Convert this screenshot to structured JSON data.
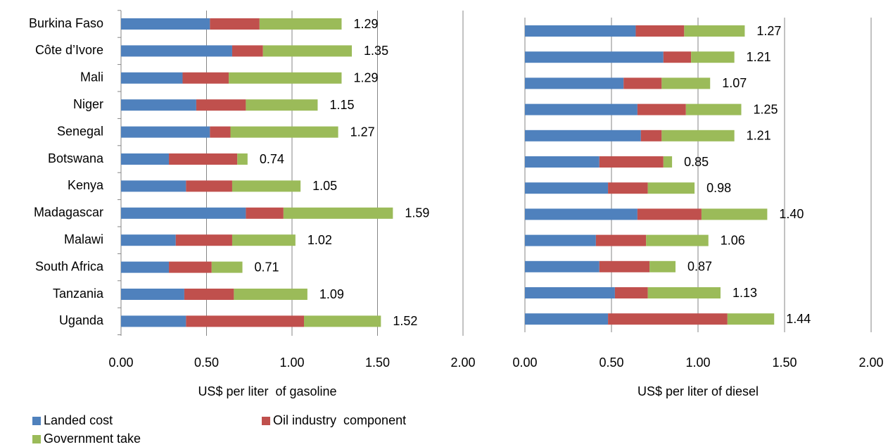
{
  "chart_data": [
    {
      "type": "stacked-barh",
      "xlabel": "US$ per liter  of gasoline",
      "categories": [
        "Burkina Faso",
        "Côte d’Ivore",
        "Mali",
        "Niger",
        "Senegal",
        "Botswana",
        "Kenya",
        "Madagascar",
        "Malawi",
        "South Africa",
        "Tanzania",
        "Uganda"
      ],
      "series": [
        {
          "name": "Landed cost",
          "color": "#4f81bd",
          "values": [
            0.52,
            0.65,
            0.36,
            0.44,
            0.52,
            0.28,
            0.38,
            0.73,
            0.32,
            0.28,
            0.37,
            0.38
          ]
        },
        {
          "name": "Oil industry  component",
          "color": "#c0504d",
          "values": [
            0.29,
            0.18,
            0.27,
            0.29,
            0.12,
            0.4,
            0.27,
            0.22,
            0.33,
            0.25,
            0.29,
            0.69
          ]
        },
        {
          "name": "Government take",
          "color": "#9bbb59",
          "values": [
            0.48,
            0.52,
            0.66,
            0.42,
            0.63,
            0.06,
            0.4,
            0.64,
            0.37,
            0.18,
            0.43,
            0.45
          ]
        }
      ],
      "totals": {
        "values": [
          1.29,
          1.35,
          1.29,
          1.15,
          1.27,
          0.74,
          1.05,
          1.59,
          1.02,
          0.71,
          1.09,
          1.52
        ],
        "value_labels": [
          "1.29",
          "1.35",
          "1.29",
          "1.15",
          "1.27",
          "0.74",
          "1.05",
          "1.59",
          "1.02",
          "0.71",
          "1.09",
          "1.52"
        ]
      },
      "xlim": [
        0,
        2
      ],
      "xticks": [
        {
          "value": 0,
          "label": "0.00"
        },
        {
          "value": 0.5,
          "label": "0.50"
        },
        {
          "value": 1,
          "label": "1.00"
        },
        {
          "value": 1.5,
          "label": "1.50"
        },
        {
          "value": 2,
          "label": "2.00"
        }
      ],
      "grid": true
    },
    {
      "type": "stacked-barh",
      "xlabel": "US$ per liter of diesel",
      "series": [
        {
          "name": "Landed cost",
          "color": "#4f81bd",
          "values": [
            0.64,
            0.8,
            0.57,
            0.65,
            0.67,
            0.43,
            0.48,
            0.65,
            0.41,
            0.43,
            0.52,
            0.48
          ]
        },
        {
          "name": "Oil industry  component",
          "color": "#c0504d",
          "values": [
            0.28,
            0.16,
            0.22,
            0.28,
            0.12,
            0.37,
            0.23,
            0.37,
            0.29,
            0.29,
            0.19,
            0.69
          ]
        },
        {
          "name": "Government take",
          "color": "#9bbb59",
          "values": [
            0.35,
            0.25,
            0.28,
            0.32,
            0.42,
            0.05,
            0.27,
            0.38,
            0.36,
            0.15,
            0.42,
            0.27
          ]
        }
      ],
      "totals": {
        "values": [
          1.27,
          1.21,
          1.07,
          1.25,
          1.21,
          0.85,
          0.98,
          1.4,
          1.06,
          0.87,
          1.13,
          1.44
        ],
        "value_labels": [
          "1.27",
          "1.21",
          "1.07",
          "1.25",
          "1.21",
          "0.85",
          "0.98",
          "1.40",
          "1.06",
          "0.87",
          "1.13",
          "1.44"
        ]
      },
      "xlim": [
        0,
        2
      ],
      "xticks": [
        {
          "value": 0,
          "label": "0.00"
        },
        {
          "value": 0.5,
          "label": "0.50"
        },
        {
          "value": 1,
          "label": "1.00"
        },
        {
          "value": 1.5,
          "label": "1.50"
        },
        {
          "value": 2,
          "label": "2.00"
        }
      ],
      "grid": true
    }
  ]
}
